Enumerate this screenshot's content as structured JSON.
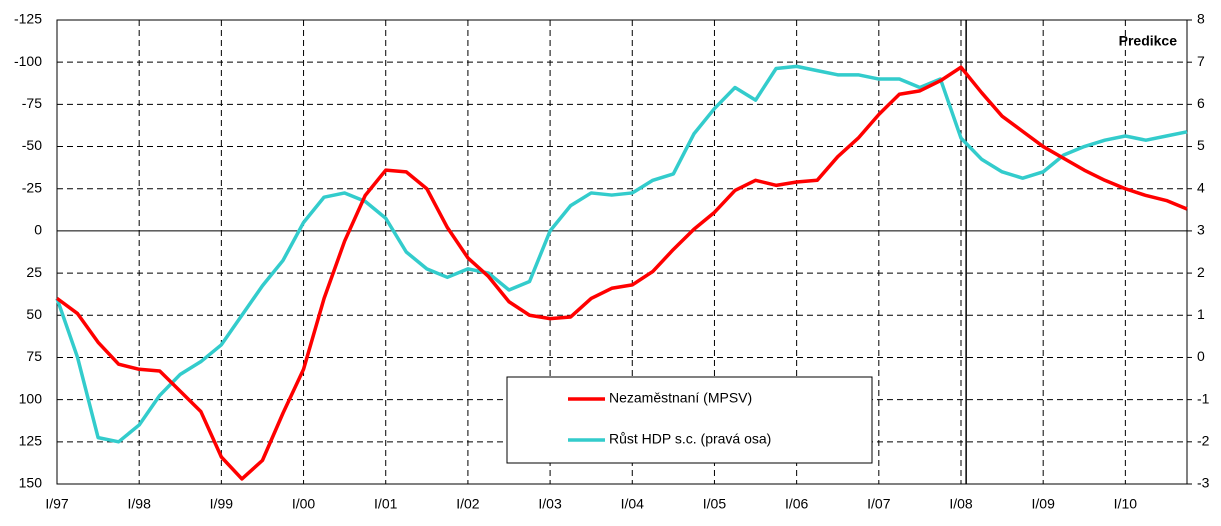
{
  "chart_data": {
    "type": "line",
    "annotation": "Predikce",
    "categories": [
      "I/97",
      null,
      null,
      null,
      "I/98",
      null,
      null,
      null,
      "I/99",
      null,
      null,
      null,
      "I/00",
      null,
      null,
      null,
      "I/01",
      null,
      null,
      null,
      "I/02",
      null,
      null,
      null,
      "I/03",
      null,
      null,
      null,
      "I/04",
      null,
      null,
      null,
      "I/05",
      null,
      null,
      null,
      "I/06",
      null,
      null,
      null,
      "I/07",
      null,
      null,
      null,
      "I/08",
      null,
      null,
      null,
      "I/09",
      null,
      null,
      null,
      "I/10",
      null,
      null,
      null
    ],
    "series": [
      {
        "name": "Nezaměstnaní (MPSV)",
        "color": "#ff0000",
        "values": [
          40,
          49,
          66,
          79,
          82,
          83,
          95,
          107,
          134,
          147,
          136,
          108,
          82,
          40,
          6,
          -21,
          -36,
          -35,
          -25,
          -2,
          16,
          27,
          42,
          50,
          52,
          51,
          40,
          34,
          32,
          24,
          11,
          -1,
          -11,
          -24,
          -30,
          -27,
          -29,
          -30,
          -44,
          -55,
          -69,
          -81,
          -83,
          -89,
          -97,
          -82,
          -68,
          -59,
          -50,
          -43,
          -36,
          -30,
          -25,
          -21,
          -18,
          -13
        ]
      },
      {
        "name": "Růst HDP s.c. (pravá osa)",
        "color": "#33cccc",
        "axis": "y2",
        "values": [
          1.4,
          0.0,
          -1.9,
          -2.0,
          -1.6,
          -0.9,
          -0.4,
          -0.1,
          0.3,
          1.0,
          1.7,
          2.3,
          3.2,
          3.8,
          3.9,
          3.7,
          3.3,
          2.5,
          2.1,
          1.9,
          2.1,
          2.0,
          1.6,
          1.8,
          3.0,
          3.6,
          3.9,
          3.85,
          3.9,
          4.2,
          4.35,
          5.3,
          5.9,
          6.4,
          6.1,
          6.85,
          6.9,
          6.8,
          6.7,
          6.7,
          6.6,
          6.6,
          6.4,
          6.6,
          5.2,
          4.7,
          4.4,
          4.25,
          4.4,
          4.8,
          5.0,
          5.15,
          5.25,
          5.15,
          5.25,
          5.35
        ]
      }
    ],
    "ylim": [
      -125,
      150
    ],
    "yinverted": true,
    "yticks": [
      -125,
      -100,
      -75,
      -50,
      -25,
      0,
      25,
      50,
      75,
      100,
      125,
      150
    ],
    "y2lim": [
      -3,
      8
    ],
    "y2ticks": [
      8,
      7,
      6,
      5,
      4,
      3,
      2,
      1,
      0,
      -1,
      -2,
      -3
    ],
    "grid": true
  }
}
